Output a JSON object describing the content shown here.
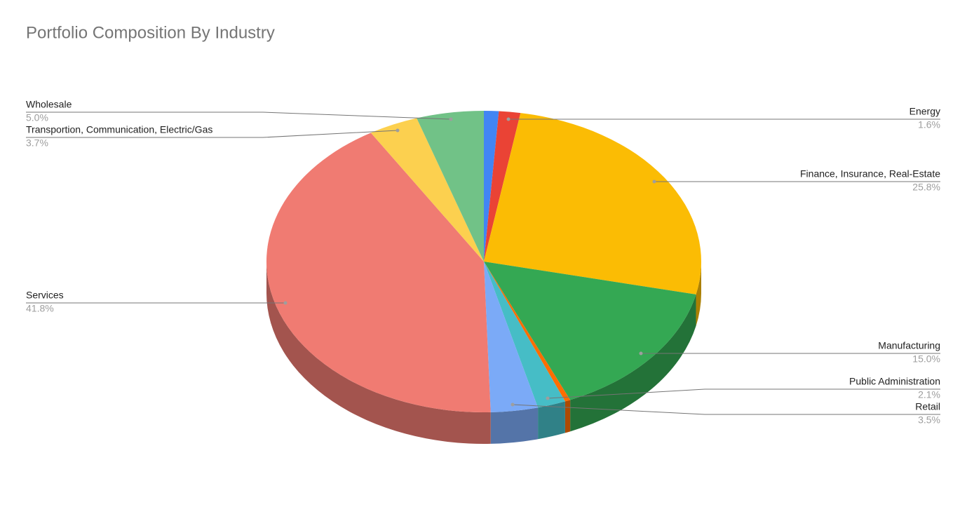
{
  "chart_data": {
    "type": "pie3d",
    "title": "Portfolio Composition By Industry",
    "categories": [
      null,
      "Energy",
      "Finance, Insurance, Real-Estate",
      "Manufacturing",
      null,
      "Public Administration",
      "Retail",
      "Services",
      "Transportion, Communication, Electric/Gas",
      "Wholesale"
    ],
    "values": [
      1.1,
      1.6,
      25.8,
      15.0,
      0.4,
      2.1,
      3.5,
      41.8,
      3.7,
      5.0
    ],
    "value_labels": [
      null,
      "1.6%",
      "25.8%",
      "15.0%",
      null,
      "2.1%",
      "3.5%",
      "41.8%",
      "3.7%",
      "5.0%"
    ],
    "colors": [
      "#4285f4",
      "#ea4335",
      "#fbbc04",
      "#34a853",
      "#ff6d01",
      "#46bdc6",
      "#7baaf7",
      "#f07b72",
      "#fcd04f",
      "#71c287"
    ]
  }
}
